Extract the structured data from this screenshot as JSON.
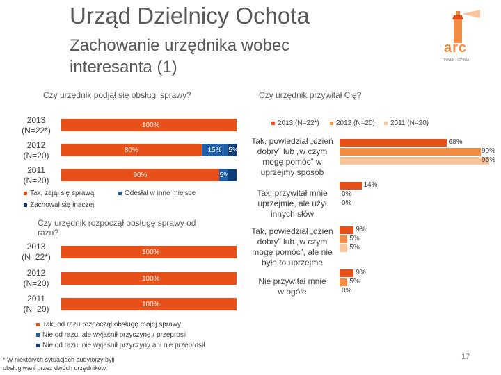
{
  "header": {
    "title": "Urząd Dzielnicy Ochota",
    "subtitle": "Zachowanie urzędnika wobec interesanta (1)",
    "logo_text": "arc",
    "logo_tagline": "RYNEK I OPINIA"
  },
  "colors": {
    "orange_dark": "#E8501A",
    "orange_mid": "#F28C42",
    "orange_light": "#F9C49A",
    "blue": "#1F5FAA",
    "blue_dark": "#0E3D78",
    "text": "#595959"
  },
  "chart_data": [
    {
      "type": "bar",
      "orientation": "horizontal-stacked",
      "title": "Czy urzędnik podjął się obsługi sprawy?",
      "categories": [
        "2013 (N=22*)",
        "2012 (N=20)",
        "2011 (N=20)"
      ],
      "category_lines": [
        [
          "2013",
          "(N=22*)"
        ],
        [
          "2012",
          "(N=20)"
        ],
        [
          "2011",
          "(N=20)"
        ]
      ],
      "series": [
        {
          "name": "Tak, zajął się sprawą",
          "values": [
            100,
            80,
            90
          ],
          "labels": [
            "100%",
            "80%",
            "90%"
          ]
        },
        {
          "name": "Odesłał w inne miejsce",
          "values": [
            0,
            15,
            5
          ],
          "labels": [
            "",
            "15%",
            "5%"
          ]
        },
        {
          "name": "Zachował się inaczej",
          "values": [
            0,
            5,
            5
          ],
          "labels": [
            "",
            "5%",
            ""
          ]
        }
      ]
    },
    {
      "type": "bar",
      "orientation": "horizontal-stacked",
      "title": "Czy urzędnik rozpoczął obsługę sprawy od razu?",
      "categories": [
        "2013 (N=22*)",
        "2012 (N=20)",
        "2011 (N=20)"
      ],
      "category_lines": [
        [
          "2013",
          "(N=22*)"
        ],
        [
          "2012",
          "(N=20)"
        ],
        [
          "2011",
          "(N=20)"
        ]
      ],
      "series": [
        {
          "name": "Tak, od razu rozpoczął obsługę mojej sprawy",
          "values": [
            100,
            100,
            100
          ],
          "labels": [
            "100%",
            "100%",
            "100%"
          ]
        },
        {
          "name": "Nie od razu, ale wyjaśnił przyczynę / przeprosił",
          "values": [
            0,
            0,
            0
          ]
        },
        {
          "name": "Nie od razu, nie wyjaśnił przyczyny ani nie przeprosił",
          "values": [
            0,
            0,
            0
          ]
        }
      ]
    },
    {
      "type": "bar",
      "orientation": "horizontal-grouped",
      "title": "Czy urzędnik przywitał Cię?",
      "categories": [
        "Tak, powiedział „dzień dobry” lub „w czym mogę pomóc” w uprzejmy sposób",
        "Tak, przywitał mnie uprzejmie, ale użył innych słów",
        "Tak, powiedział „dzień dobry” lub „w czym mogę pomóc”, ale nie było to uprzejme",
        "Nie przywitał mnie w ogóle"
      ],
      "category_lines": [
        [
          "Tak, powiedział „dzień",
          "dobry” lub „w czym",
          "mogę pomóc” w",
          "uprzejmy sposób"
        ],
        [
          "Tak, przywitał mnie",
          "uprzejmie, ale użył",
          "innych słów"
        ],
        [
          "Tak, powiedział „dzień",
          "dobry” lub „w czym",
          "mogę pomóc”, ale nie",
          "było to uprzejme"
        ],
        [
          "Nie przywitał mnie",
          "w ogóle"
        ]
      ],
      "series": [
        {
          "name": "2013 (N=22*)",
          "values": [
            68,
            14,
            9,
            9
          ]
        },
        {
          "name": "2012 (N=20)",
          "values": [
            90,
            0,
            5,
            5
          ]
        },
        {
          "name": "2011 (N=20)",
          "values": [
            95,
            0,
            5,
            0
          ]
        }
      ],
      "value_labels": [
        [
          "68%",
          "90%",
          "95%"
        ],
        [
          "14%",
          "0%",
          "0%"
        ],
        [
          "9%",
          "5%",
          "5%"
        ],
        [
          "9%",
          "5%",
          "0%"
        ]
      ],
      "xlim": [
        0,
        100
      ]
    }
  ],
  "legends": {
    "left_top": [
      "Tak, zajął się sprawą",
      "Odesłał w inne miejsce",
      "Zachował się inaczej"
    ],
    "left_bottom": [
      "Tak, od razu rozpoczął obsługę mojej sprawy",
      "Nie od razu, ale wyjaśnił przyczynę / przeprosił",
      "Nie od razu, nie wyjaśnił przyczyny ani nie przeprosił"
    ],
    "right": [
      "2013 (N=22*)",
      "2012 (N=20)",
      "2011 (N=20)"
    ]
  },
  "footnote": {
    "line1": "* W niektórych sytuacjach audytorzy byli",
    "line2": "obsługiwani przez dwóch urzędników."
  },
  "page_number": "17"
}
